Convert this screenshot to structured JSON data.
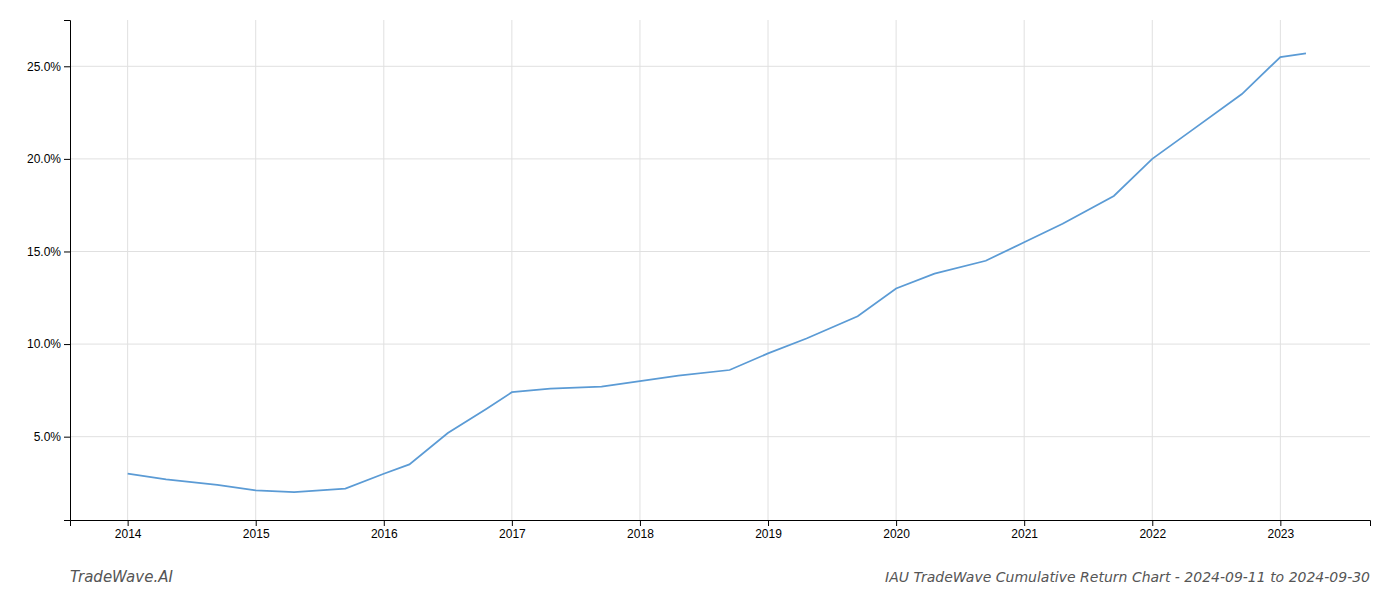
{
  "chart_data": {
    "type": "line",
    "title": "IAU TradeWave Cumulative Return Chart - 2024-09-11 to 2024-09-30",
    "annotations": [
      "TradeWave.AI"
    ],
    "x": [
      2014.0,
      2014.3,
      2014.7,
      2015.0,
      2015.3,
      2015.7,
      2016.0,
      2016.2,
      2016.5,
      2016.8,
      2017.0,
      2017.3,
      2017.7,
      2018.0,
      2018.3,
      2018.7,
      2019.0,
      2019.3,
      2019.7,
      2020.0,
      2020.3,
      2020.7,
      2021.0,
      2021.3,
      2021.7,
      2022.0,
      2022.3,
      2022.7,
      2023.0,
      2023.2
    ],
    "values": [
      3.0,
      2.7,
      2.4,
      2.1,
      2.0,
      2.2,
      3.0,
      3.5,
      5.2,
      6.5,
      7.4,
      7.6,
      7.7,
      8.0,
      8.3,
      8.6,
      9.5,
      10.3,
      11.5,
      13.0,
      13.8,
      14.5,
      15.5,
      16.5,
      18.0,
      20.0,
      21.5,
      23.5,
      25.5,
      25.7
    ],
    "color": "#5b9bd5",
    "xlim": [
      2013.55,
      2023.7
    ],
    "xticks": [
      2014,
      2015,
      2016,
      2017,
      2018,
      2019,
      2020,
      2021,
      2022,
      2023
    ],
    "ylim": [
      0.5,
      27.5
    ],
    "yticks": [
      {
        "value": 5.0,
        "label": "5.0%"
      },
      {
        "value": 10.0,
        "label": "10.0%"
      },
      {
        "value": 15.0,
        "label": "15.0%"
      },
      {
        "value": 20.0,
        "label": "20.0%"
      },
      {
        "value": 25.0,
        "label": "25.0%"
      }
    ],
    "grid": true
  }
}
